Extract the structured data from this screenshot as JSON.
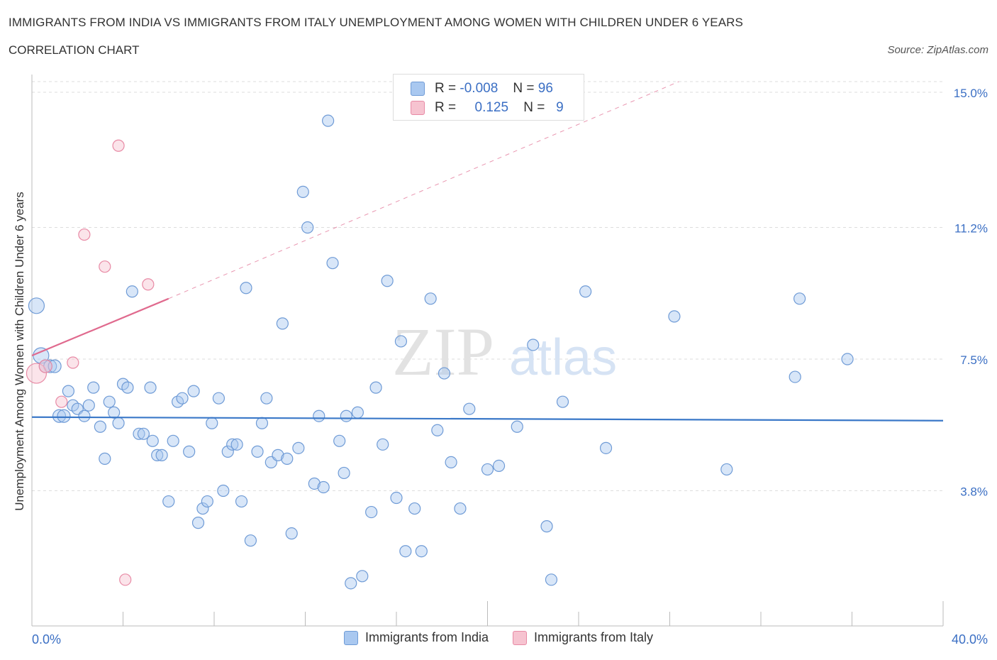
{
  "title": "IMMIGRANTS FROM INDIA VS IMMIGRANTS FROM ITALY UNEMPLOYMENT AMONG WOMEN WITH CHILDREN UNDER 6 YEARS",
  "subtitle": "CORRELATION CHART",
  "source": "Source: ZipAtlas.com",
  "watermark": {
    "zip": "ZIP",
    "atlas": "atlas"
  },
  "stats": {
    "india": {
      "r_label": "R =",
      "r_value": "-0.008",
      "n_label": "N =",
      "n_value": "96"
    },
    "italy": {
      "r_label": "R =",
      "r_value": "0.125",
      "n_label": "N =",
      "n_value": "9"
    }
  },
  "legend": {
    "india": "Immigrants from India",
    "italy": "Immigrants from Italy"
  },
  "colors": {
    "india_fill": "#a9c8f0",
    "india_stroke": "#6f9bd6",
    "india_line": "#3a78c8",
    "italy_fill": "#f6c3d0",
    "italy_stroke": "#e88aa5",
    "italy_line": "#e06a8e",
    "tick_text": "#3b6fc4",
    "grid": "#dddddd"
  },
  "chart_data": {
    "type": "scatter",
    "title": "IMMIGRANTS FROM INDIA VS IMMIGRANTS FROM ITALY UNEMPLOYMENT AMONG WOMEN WITH CHILDREN UNDER 6 YEARS",
    "xlabel": "",
    "ylabel": "Unemployment Among Women with Children Under 6 years",
    "xlim": [
      0,
      40
    ],
    "ylim": [
      0,
      15.3
    ],
    "x_tick_labels": [
      "0.0%",
      "40.0%"
    ],
    "y_ticks": [
      3.8,
      7.5,
      11.2,
      15.0
    ],
    "y_tick_labels": [
      "3.8%",
      "7.5%",
      "11.2%",
      "15.0%"
    ],
    "grid": true,
    "series": [
      {
        "name": "Immigrants from India",
        "trend": {
          "x": [
            0,
            40
          ],
          "y": [
            5.87,
            5.77
          ]
        },
        "points": [
          {
            "x": 0.2,
            "y": 9.0,
            "r": 11
          },
          {
            "x": 0.4,
            "y": 7.6,
            "r": 11
          },
          {
            "x": 0.6,
            "y": 7.3,
            "r": 9
          },
          {
            "x": 0.8,
            "y": 7.3,
            "r": 9
          },
          {
            "x": 1.0,
            "y": 7.3,
            "r": 9
          },
          {
            "x": 1.2,
            "y": 5.9,
            "r": 9
          },
          {
            "x": 1.4,
            "y": 5.9,
            "r": 9
          },
          {
            "x": 1.6,
            "y": 6.6,
            "r": 8
          },
          {
            "x": 1.8,
            "y": 6.2,
            "r": 8
          },
          {
            "x": 2.0,
            "y": 6.1,
            "r": 8
          },
          {
            "x": 2.3,
            "y": 5.9,
            "r": 8
          },
          {
            "x": 2.5,
            "y": 6.2,
            "r": 8
          },
          {
            "x": 2.7,
            "y": 6.7,
            "r": 8
          },
          {
            "x": 3.0,
            "y": 5.6,
            "r": 8
          },
          {
            "x": 3.2,
            "y": 4.7,
            "r": 8
          },
          {
            "x": 3.4,
            "y": 6.3,
            "r": 8
          },
          {
            "x": 3.6,
            "y": 6.0,
            "r": 8
          },
          {
            "x": 3.8,
            "y": 5.7,
            "r": 8
          },
          {
            "x": 4.0,
            "y": 6.8,
            "r": 8
          },
          {
            "x": 4.2,
            "y": 6.7,
            "r": 8
          },
          {
            "x": 4.4,
            "y": 9.4,
            "r": 8
          },
          {
            "x": 4.7,
            "y": 5.4,
            "r": 8
          },
          {
            "x": 4.9,
            "y": 5.4,
            "r": 8
          },
          {
            "x": 5.2,
            "y": 6.7,
            "r": 8
          },
          {
            "x": 5.3,
            "y": 5.2,
            "r": 8
          },
          {
            "x": 5.5,
            "y": 4.8,
            "r": 8
          },
          {
            "x": 5.7,
            "y": 4.8,
            "r": 8
          },
          {
            "x": 6.0,
            "y": 3.5,
            "r": 8
          },
          {
            "x": 6.2,
            "y": 5.2,
            "r": 8
          },
          {
            "x": 6.4,
            "y": 6.3,
            "r": 8
          },
          {
            "x": 6.6,
            "y": 6.4,
            "r": 8
          },
          {
            "x": 6.9,
            "y": 4.9,
            "r": 8
          },
          {
            "x": 7.1,
            "y": 6.6,
            "r": 8
          },
          {
            "x": 7.3,
            "y": 2.9,
            "r": 8
          },
          {
            "x": 7.5,
            "y": 3.3,
            "r": 8
          },
          {
            "x": 7.7,
            "y": 3.5,
            "r": 8
          },
          {
            "x": 7.9,
            "y": 5.7,
            "r": 8
          },
          {
            "x": 8.2,
            "y": 6.4,
            "r": 8
          },
          {
            "x": 8.4,
            "y": 3.8,
            "r": 8
          },
          {
            "x": 8.6,
            "y": 4.9,
            "r": 8
          },
          {
            "x": 8.8,
            "y": 5.1,
            "r": 8
          },
          {
            "x": 9.0,
            "y": 5.1,
            "r": 8
          },
          {
            "x": 9.2,
            "y": 3.5,
            "r": 8
          },
          {
            "x": 9.4,
            "y": 9.5,
            "r": 8
          },
          {
            "x": 9.6,
            "y": 2.4,
            "r": 8
          },
          {
            "x": 9.9,
            "y": 4.9,
            "r": 8
          },
          {
            "x": 10.1,
            "y": 5.7,
            "r": 8
          },
          {
            "x": 10.3,
            "y": 6.4,
            "r": 8
          },
          {
            "x": 10.5,
            "y": 4.6,
            "r": 8
          },
          {
            "x": 10.8,
            "y": 4.8,
            "r": 8
          },
          {
            "x": 11.0,
            "y": 8.5,
            "r": 8
          },
          {
            "x": 11.2,
            "y": 4.7,
            "r": 8
          },
          {
            "x": 11.4,
            "y": 2.6,
            "r": 8
          },
          {
            "x": 11.7,
            "y": 5.0,
            "r": 8
          },
          {
            "x": 11.9,
            "y": 12.2,
            "r": 8
          },
          {
            "x": 12.1,
            "y": 11.2,
            "r": 8
          },
          {
            "x": 12.4,
            "y": 4.0,
            "r": 8
          },
          {
            "x": 12.6,
            "y": 5.9,
            "r": 8
          },
          {
            "x": 12.8,
            "y": 3.9,
            "r": 8
          },
          {
            "x": 13.0,
            "y": 14.2,
            "r": 8
          },
          {
            "x": 13.2,
            "y": 10.2,
            "r": 8
          },
          {
            "x": 13.5,
            "y": 5.2,
            "r": 8
          },
          {
            "x": 13.7,
            "y": 4.3,
            "r": 8
          },
          {
            "x": 13.8,
            "y": 5.9,
            "r": 8
          },
          {
            "x": 14.0,
            "y": 1.2,
            "r": 8
          },
          {
            "x": 14.3,
            "y": 6.0,
            "r": 8
          },
          {
            "x": 14.5,
            "y": 1.4,
            "r": 8
          },
          {
            "x": 14.9,
            "y": 3.2,
            "r": 8
          },
          {
            "x": 15.1,
            "y": 6.7,
            "r": 8
          },
          {
            "x": 15.4,
            "y": 5.1,
            "r": 8
          },
          {
            "x": 15.6,
            "y": 9.7,
            "r": 8
          },
          {
            "x": 16.0,
            "y": 3.6,
            "r": 8
          },
          {
            "x": 16.2,
            "y": 8.0,
            "r": 8
          },
          {
            "x": 16.4,
            "y": 2.1,
            "r": 8
          },
          {
            "x": 16.8,
            "y": 3.3,
            "r": 8
          },
          {
            "x": 17.1,
            "y": 2.1,
            "r": 8
          },
          {
            "x": 17.5,
            "y": 9.2,
            "r": 8
          },
          {
            "x": 17.8,
            "y": 5.5,
            "r": 8
          },
          {
            "x": 18.1,
            "y": 7.1,
            "r": 8
          },
          {
            "x": 18.4,
            "y": 4.6,
            "r": 8
          },
          {
            "x": 18.8,
            "y": 3.3,
            "r": 8
          },
          {
            "x": 19.2,
            "y": 6.1,
            "r": 8
          },
          {
            "x": 20.0,
            "y": 4.4,
            "r": 8
          },
          {
            "x": 20.5,
            "y": 4.5,
            "r": 8
          },
          {
            "x": 21.3,
            "y": 5.6,
            "r": 8
          },
          {
            "x": 22.0,
            "y": 7.9,
            "r": 8
          },
          {
            "x": 22.6,
            "y": 2.8,
            "r": 8
          },
          {
            "x": 22.8,
            "y": 1.3,
            "r": 8
          },
          {
            "x": 23.3,
            "y": 6.3,
            "r": 8
          },
          {
            "x": 24.3,
            "y": 9.4,
            "r": 8
          },
          {
            "x": 25.2,
            "y": 5.0,
            "r": 8
          },
          {
            "x": 28.2,
            "y": 8.7,
            "r": 8
          },
          {
            "x": 30.5,
            "y": 4.4,
            "r": 8
          },
          {
            "x": 33.5,
            "y": 7.0,
            "r": 8
          },
          {
            "x": 33.7,
            "y": 9.2,
            "r": 8
          },
          {
            "x": 35.8,
            "y": 7.5,
            "r": 8
          }
        ]
      },
      {
        "name": "Immigrants from Italy",
        "trend": {
          "x": [
            0,
            6
          ],
          "y": [
            7.6,
            9.2
          ],
          "dashed_extension": {
            "x": [
              6,
              28.4
            ],
            "y": [
              9.2,
              15.3
            ]
          }
        },
        "points": [
          {
            "x": 0.2,
            "y": 7.1,
            "r": 14
          },
          {
            "x": 0.6,
            "y": 7.3,
            "r": 9
          },
          {
            "x": 1.3,
            "y": 6.3,
            "r": 8
          },
          {
            "x": 1.8,
            "y": 7.4,
            "r": 8
          },
          {
            "x": 2.3,
            "y": 11.0,
            "r": 8
          },
          {
            "x": 3.2,
            "y": 10.1,
            "r": 8
          },
          {
            "x": 3.8,
            "y": 13.5,
            "r": 8
          },
          {
            "x": 4.1,
            "y": 1.3,
            "r": 8
          },
          {
            "x": 5.1,
            "y": 9.6,
            "r": 8
          }
        ]
      }
    ]
  }
}
